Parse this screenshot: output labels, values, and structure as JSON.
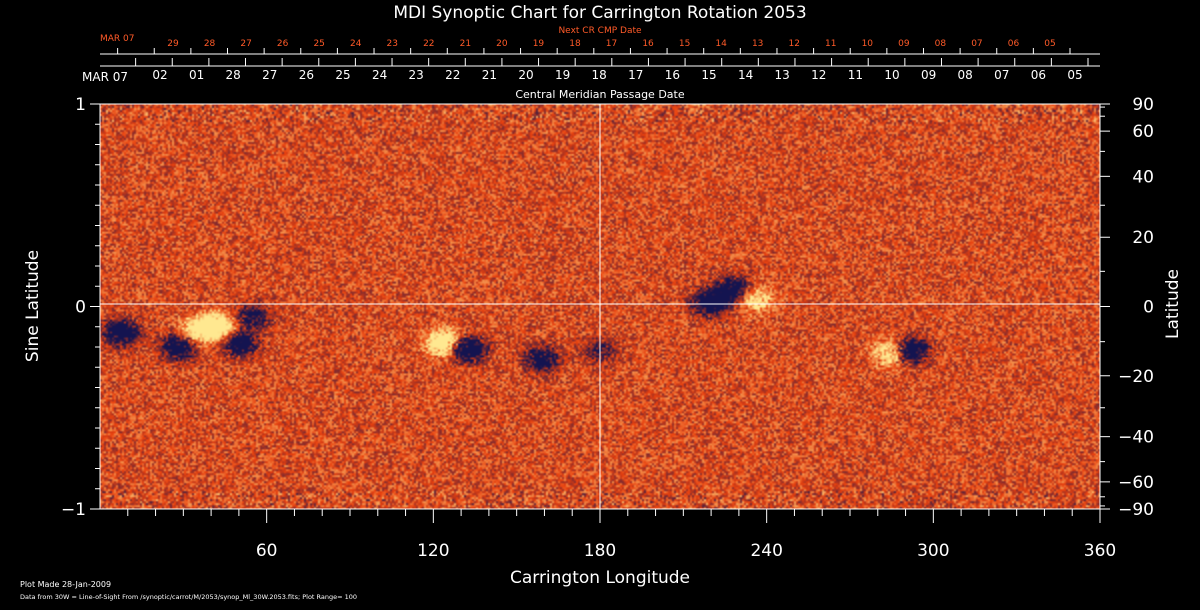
{
  "chart_data": {
    "type": "heatmap",
    "title": "MDI Synoptic Chart for Carrington Rotation 2053",
    "xlabel": "Carrington Longitude",
    "ylabel_left": "Sine Latitude",
    "ylabel_right": "Latitude",
    "xlim": [
      0,
      360
    ],
    "ylim": [
      -1,
      1
    ],
    "x_ticks": [
      "60",
      "120",
      "180",
      "240",
      "300",
      "360"
    ],
    "x_tick_values": [
      60,
      120,
      180,
      240,
      300,
      360
    ],
    "y_left_ticks": [
      "1",
      "0",
      "−1"
    ],
    "y_left_tick_values": [
      1,
      0,
      -1
    ],
    "y_right_ticks": [
      "90",
      "60",
      "40",
      "20",
      "0",
      "−20",
      "−40",
      "−60",
      "−90"
    ],
    "y_right_tick_values": [
      90,
      60,
      40,
      20,
      0,
      -20,
      -40,
      -60,
      -90
    ],
    "date_axis_label": "Central Meridian Passage Date",
    "date_axis_start": "MAR 07",
    "date_axis_labels": [
      "02",
      "01",
      "28",
      "27",
      "26",
      "25",
      "24",
      "23",
      "22",
      "21",
      "20",
      "19",
      "18",
      "17",
      "16",
      "15",
      "14",
      "13",
      "12",
      "11",
      "10",
      "09",
      "08",
      "07",
      "06",
      "05"
    ],
    "next_axis_label": "Next CR CMP Date",
    "next_axis_start": "MAR 07",
    "next_axis_labels": [
      "29",
      "28",
      "27",
      "26",
      "25",
      "24",
      "23",
      "22",
      "21",
      "20",
      "19",
      "18",
      "17",
      "16",
      "15",
      "14",
      "13",
      "12",
      "11",
      "10",
      "09",
      "08",
      "07",
      "06",
      "05"
    ],
    "active_regions": [
      {
        "lon": 7,
        "sinlat": -0.13,
        "polarity": "negative",
        "strength": 0.9
      },
      {
        "lon": 28,
        "sinlat": -0.2,
        "polarity": "negative",
        "strength": 0.8
      },
      {
        "lon": 35,
        "sinlat": -0.12,
        "polarity": "positive",
        "strength": 0.7
      },
      {
        "lon": 42,
        "sinlat": -0.1,
        "polarity": "positive",
        "strength": 1.0
      },
      {
        "lon": 50,
        "sinlat": -0.18,
        "polarity": "negative",
        "strength": 0.8
      },
      {
        "lon": 55,
        "sinlat": -0.05,
        "polarity": "negative",
        "strength": 0.6
      },
      {
        "lon": 124,
        "sinlat": -0.18,
        "polarity": "positive",
        "strength": 1.0
      },
      {
        "lon": 132,
        "sinlat": -0.21,
        "polarity": "negative",
        "strength": 1.0
      },
      {
        "lon": 159,
        "sinlat": -0.26,
        "polarity": "negative",
        "strength": 0.7
      },
      {
        "lon": 220,
        "sinlat": 0.02,
        "polarity": "negative",
        "strength": 0.9
      },
      {
        "lon": 228,
        "sinlat": 0.08,
        "polarity": "negative",
        "strength": 0.8
      },
      {
        "lon": 236,
        "sinlat": 0.04,
        "polarity": "positive",
        "strength": 0.6
      },
      {
        "lon": 285,
        "sinlat": -0.23,
        "polarity": "positive",
        "strength": 0.7
      },
      {
        "lon": 292,
        "sinlat": -0.22,
        "polarity": "negative",
        "strength": 0.9
      },
      {
        "lon": 180,
        "sinlat": -0.22,
        "polarity": "negative",
        "strength": 0.4
      }
    ],
    "plot_range": 100
  },
  "footer": {
    "plot_made": "Plot Made 28-Jan-2009",
    "data_from": "Data from 30W = Line-of-Sight From /synoptic/carrot/M/2053/synop_Ml_30W.2053.fits; Plot Range=  100"
  },
  "colors": {
    "background": "#000000",
    "text": "#ffffff",
    "next_axis": "#ff5a28",
    "field_base": "#e8400e",
    "field_positive": "#ffe890",
    "field_negative": "#141450"
  }
}
